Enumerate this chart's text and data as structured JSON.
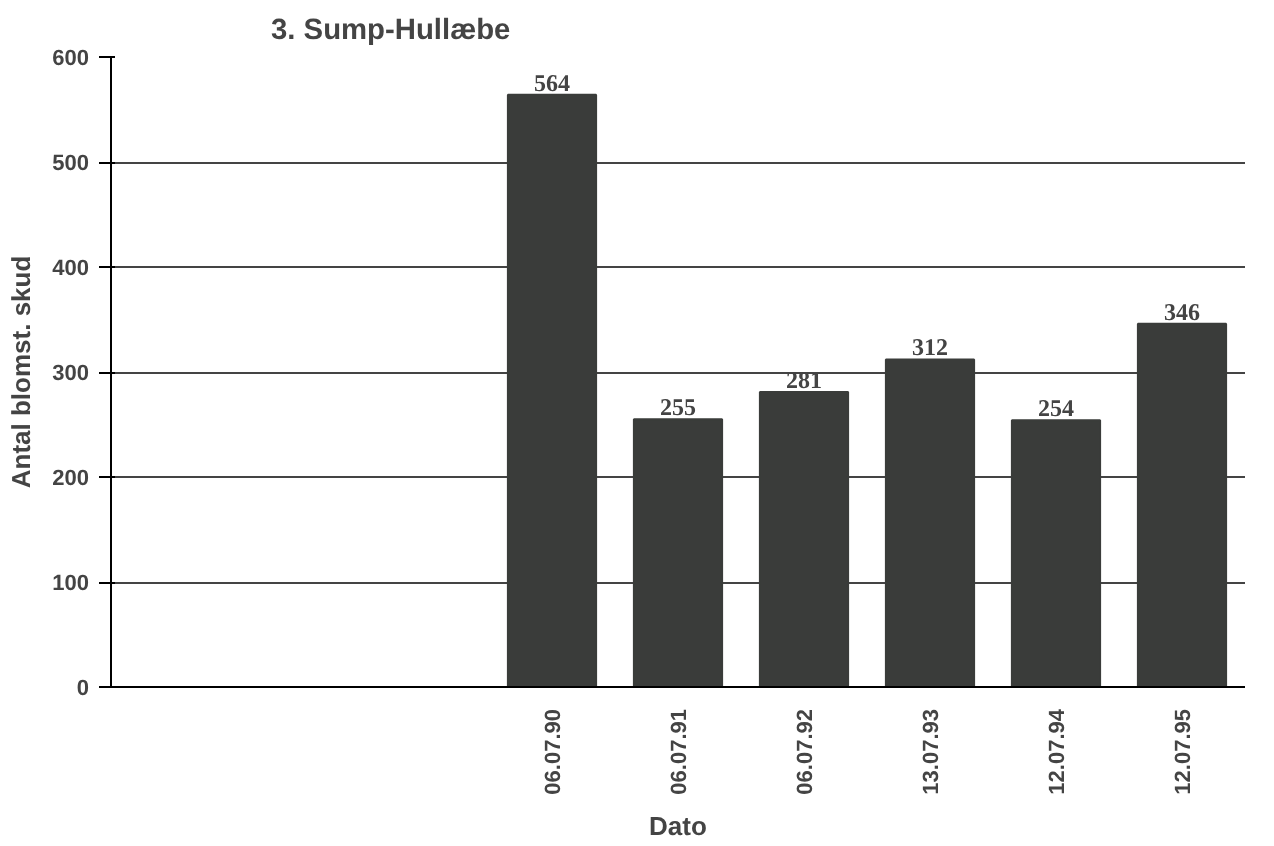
{
  "chart_data": {
    "type": "bar",
    "title": "3. Sump-Hullæbe",
    "xlabel": "Dato",
    "ylabel": "Antal blomst. skud",
    "categories": [
      null,
      null,
      null,
      "06.07.90",
      "06.07.91",
      "06.07.92",
      "13.07.93",
      "12.07.94",
      "12.07.95"
    ],
    "values": [
      null,
      null,
      null,
      564,
      255,
      281,
      312,
      254,
      346
    ],
    "color": "#3a3c3a",
    "ylim": [
      0,
      600
    ],
    "yticks": [
      0,
      100,
      200,
      300,
      400,
      500,
      600
    ],
    "grid": "y",
    "data_labels": true
  }
}
